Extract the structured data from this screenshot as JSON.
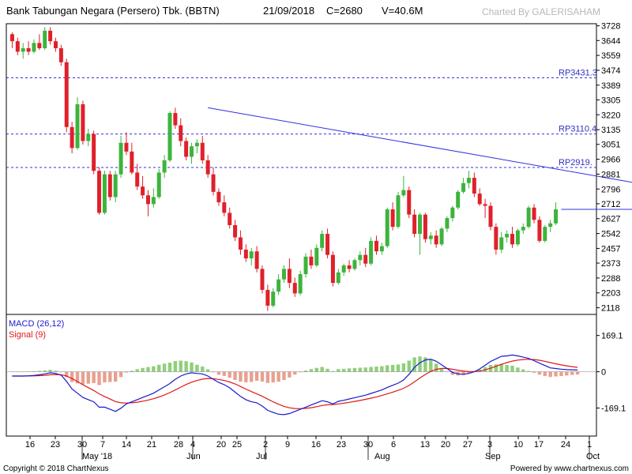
{
  "header": {
    "title": "Bank Tabungan Negara (Persero) Tbk. (BBTN)",
    "date": "21/09/2018",
    "close": "C=2680",
    "volume": "V=40.6M",
    "watermark": "Charted By GALERISAHAM"
  },
  "footer": {
    "copyright": "Copyright © 2018 ChartNexus",
    "powered": "Powered by  www.chartnexus.com"
  },
  "colors": {
    "up": "#3cb43c",
    "down": "#e0202a",
    "trend": "#3030e0",
    "macd": "#1a1ad0",
    "signal": "#e01818",
    "grid": "#cccccc"
  },
  "chart_data": [
    {
      "type": "candlestick",
      "y_ticks": [
        3728,
        3644,
        3559,
        3474,
        3389,
        3305,
        3220,
        3135,
        3051,
        2966,
        2881,
        2796,
        2712,
        2627,
        2542,
        2457,
        2373,
        2288,
        2203,
        2118
      ],
      "ylim": [
        2080,
        3740
      ],
      "x_ticks": [
        "16",
        "23",
        "30",
        "7",
        "14",
        "21",
        "28",
        "4",
        "20",
        "25",
        "2",
        "9",
        "16",
        "23",
        "30",
        "6",
        "13",
        "20",
        "27",
        "3",
        "10",
        "17",
        "24",
        "1"
      ],
      "month_labels": [
        "May '18",
        "Jun",
        "Jul",
        "Aug",
        "Sep",
        "Oct"
      ],
      "horizontal_levels": [
        {
          "label": "RP3431.3",
          "value": 3431
        },
        {
          "label": "RP3110.4",
          "value": 3110
        },
        {
          "label": "RP2919.",
          "value": 2919
        }
      ],
      "trendline": {
        "start": [
          36,
          3260
        ],
        "end": [
          124,
          2780
        ]
      },
      "resistance_segment": {
        "start": [
          101,
          2680
        ],
        "end": [
          118,
          2680
        ]
      },
      "candles": [
        [
          3680,
          3690,
          3600,
          3640
        ],
        [
          3640,
          3660,
          3560,
          3580
        ],
        [
          3580,
          3630,
          3540,
          3600
        ],
        [
          3600,
          3640,
          3560,
          3580
        ],
        [
          3580,
          3650,
          3570,
          3630
        ],
        [
          3630,
          3680,
          3590,
          3600
        ],
        [
          3600,
          3720,
          3590,
          3700
        ],
        [
          3700,
          3720,
          3620,
          3640
        ],
        [
          3640,
          3660,
          3580,
          3600
        ],
        [
          3600,
          3620,
          3500,
          3520
        ],
        [
          3520,
          3540,
          3120,
          3150
        ],
        [
          3150,
          3180,
          3000,
          3030
        ],
        [
          3030,
          3320,
          3020,
          3280
        ],
        [
          3280,
          3300,
          3050,
          3070
        ],
        [
          3070,
          3140,
          3040,
          3110
        ],
        [
          3110,
          3130,
          2880,
          2900
        ],
        [
          2900,
          2920,
          2650,
          2660
        ],
        [
          2660,
          2900,
          2650,
          2880
        ],
        [
          2880,
          2900,
          2730,
          2750
        ],
        [
          2750,
          2900,
          2720,
          2880
        ],
        [
          2880,
          3100,
          2860,
          3060
        ],
        [
          3060,
          3120,
          2990,
          3010
        ],
        [
          3010,
          3060,
          2880,
          2890
        ],
        [
          2890,
          2940,
          2790,
          2810
        ],
        [
          2810,
          2870,
          2740,
          2760
        ],
        [
          2760,
          2790,
          2640,
          2710
        ],
        [
          2710,
          2800,
          2690,
          2750
        ],
        [
          2750,
          2910,
          2740,
          2890
        ],
        [
          2890,
          2990,
          2860,
          2960
        ],
        [
          2960,
          3240,
          2950,
          3230
        ],
        [
          3230,
          3260,
          3140,
          3160
        ],
        [
          3160,
          3200,
          3040,
          3070
        ],
        [
          3070,
          3090,
          2960,
          2980
        ],
        [
          2980,
          3060,
          2940,
          3040
        ],
        [
          3040,
          3080,
          3000,
          3060
        ],
        [
          3060,
          3100,
          2940,
          2960
        ],
        [
          2960,
          2990,
          2860,
          2880
        ],
        [
          2880,
          2920,
          2760,
          2780
        ],
        [
          2780,
          2800,
          2700,
          2720
        ],
        [
          2720,
          2760,
          2640,
          2660
        ],
        [
          2660,
          2690,
          2570,
          2590
        ],
        [
          2590,
          2620,
          2500,
          2520
        ],
        [
          2520,
          2560,
          2420,
          2450
        ],
        [
          2450,
          2480,
          2380,
          2400
        ],
        [
          2400,
          2460,
          2360,
          2440
        ],
        [
          2440,
          2470,
          2320,
          2340
        ],
        [
          2340,
          2360,
          2200,
          2220
        ],
        [
          2220,
          2250,
          2100,
          2130
        ],
        [
          2130,
          2230,
          2120,
          2210
        ],
        [
          2210,
          2310,
          2190,
          2280
        ],
        [
          2280,
          2360,
          2260,
          2340
        ],
        [
          2340,
          2400,
          2230,
          2260
        ],
        [
          2260,
          2290,
          2180,
          2200
        ],
        [
          2200,
          2330,
          2190,
          2310
        ],
        [
          2310,
          2430,
          2290,
          2410
        ],
        [
          2410,
          2450,
          2340,
          2360
        ],
        [
          2360,
          2480,
          2350,
          2460
        ],
        [
          2460,
          2560,
          2440,
          2540
        ],
        [
          2540,
          2570,
          2400,
          2420
        ],
        [
          2420,
          2440,
          2240,
          2260
        ],
        [
          2260,
          2340,
          2250,
          2320
        ],
        [
          2320,
          2370,
          2300,
          2360
        ],
        [
          2360,
          2390,
          2320,
          2340
        ],
        [
          2340,
          2400,
          2330,
          2390
        ],
        [
          2390,
          2440,
          2360,
          2420
        ],
        [
          2420,
          2460,
          2350,
          2370
        ],
        [
          2370,
          2520,
          2360,
          2500
        ],
        [
          2500,
          2530,
          2420,
          2440
        ],
        [
          2440,
          2490,
          2420,
          2470
        ],
        [
          2470,
          2690,
          2460,
          2680
        ],
        [
          2680,
          2720,
          2560,
          2580
        ],
        [
          2580,
          2780,
          2570,
          2760
        ],
        [
          2760,
          2870,
          2750,
          2790
        ],
        [
          2790,
          2810,
          2630,
          2650
        ],
        [
          2650,
          2680,
          2520,
          2540
        ],
        [
          2540,
          2660,
          2420,
          2650
        ],
        [
          2650,
          2660,
          2490,
          2510
        ],
        [
          2510,
          2550,
          2480,
          2530
        ],
        [
          2530,
          2560,
          2460,
          2480
        ],
        [
          2480,
          2580,
          2470,
          2570
        ],
        [
          2570,
          2640,
          2550,
          2630
        ],
        [
          2630,
          2700,
          2610,
          2690
        ],
        [
          2690,
          2790,
          2680,
          2780
        ],
        [
          2780,
          2860,
          2770,
          2830
        ],
        [
          2830,
          2900,
          2800,
          2860
        ],
        [
          2860,
          2890,
          2750,
          2770
        ],
        [
          2770,
          2800,
          2700,
          2710
        ],
        [
          2710,
          2740,
          2630,
          2700
        ],
        [
          2700,
          2720,
          2560,
          2580
        ],
        [
          2580,
          2600,
          2420,
          2450
        ],
        [
          2450,
          2550,
          2430,
          2520
        ],
        [
          2520,
          2560,
          2490,
          2540
        ],
        [
          2540,
          2580,
          2460,
          2480
        ],
        [
          2480,
          2570,
          2470,
          2560
        ],
        [
          2560,
          2600,
          2540,
          2580
        ],
        [
          2580,
          2700,
          2570,
          2690
        ],
        [
          2690,
          2710,
          2600,
          2620
        ],
        [
          2620,
          2640,
          2490,
          2500
        ],
        [
          2500,
          2590,
          2490,
          2580
        ],
        [
          2580,
          2620,
          2550,
          2600
        ],
        [
          2600,
          2720,
          2590,
          2680
        ]
      ]
    },
    {
      "type": "macd",
      "title": "MACD (26,12)",
      "signal_label": "Signal (9)",
      "y_ticks": [
        169.1,
        0,
        -169.1
      ],
      "ylim": [
        -300,
        260
      ],
      "macd": [
        -20,
        -20,
        -20,
        -19,
        -17,
        -14,
        -10,
        -5,
        -8,
        -16,
        -45,
        -80,
        -100,
        -120,
        -130,
        -140,
        -165,
        -165,
        -175,
        -185,
        -170,
        -150,
        -140,
        -130,
        -120,
        -110,
        -100,
        -85,
        -70,
        -55,
        -35,
        -20,
        -10,
        -5,
        -8,
        -10,
        -20,
        -35,
        -50,
        -60,
        -75,
        -95,
        -115,
        -130,
        -140,
        -145,
        -160,
        -180,
        -190,
        -198,
        -200,
        -195,
        -185,
        -175,
        -165,
        -155,
        -145,
        -135,
        -140,
        -150,
        -138,
        -133,
        -127,
        -121,
        -115,
        -109,
        -101,
        -93,
        -85,
        -73,
        -63,
        -53,
        -38,
        -12,
        20,
        42,
        55,
        59,
        49,
        32,
        15,
        -3,
        -10,
        -12,
        -8,
        0,
        13,
        30,
        48,
        60,
        72,
        74,
        78,
        74,
        68,
        62,
        52,
        40,
        29,
        18,
        15,
        12,
        10,
        9,
        8
      ]
    }
  ]
}
